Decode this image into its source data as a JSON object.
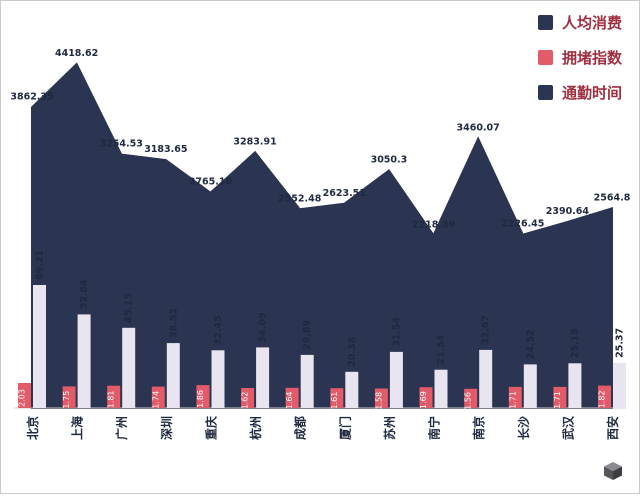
{
  "legend": {
    "text_color": "#a02f3f",
    "items": [
      {
        "label": "人均消费",
        "marker_color": "#2b3450"
      },
      {
        "label": "拥堵指数",
        "marker_color": "#e15b68"
      },
      {
        "label": "通勤时间",
        "marker_color": "#2b3450"
      }
    ]
  },
  "chart_data": {
    "type": "bar",
    "title": "",
    "xlabel": "",
    "ylabel": "",
    "grid": false,
    "legend_position": "right-top",
    "categories": [
      "北京",
      "上海",
      "广州",
      "深圳",
      "重庆",
      "杭州",
      "成都",
      "厦门",
      "苏州",
      "南宁",
      "南京",
      "长沙",
      "武汉",
      "西安"
    ],
    "series": [
      {
        "name": "人均消费",
        "type": "area",
        "color": "#2b3450",
        "label_color": "#1f2940",
        "values": [
          3862.35,
          4418.62,
          3254.53,
          3183.65,
          2765.16,
          3283.91,
          2552.48,
          2623.51,
          3050.3,
          2218.89,
          3460.07,
          2226.45,
          2390.64,
          2564.8
        ]
      },
      {
        "name": "拥堵指数",
        "type": "bar",
        "color": "#e15b68",
        "label_color": "#ffffff",
        "values": [
          2.03,
          1.75,
          1.81,
          1.74,
          1.86,
          1.62,
          1.64,
          1.61,
          1.58,
          1.69,
          1.56,
          1.71,
          1.71,
          1.82
        ]
      },
      {
        "name": "通勤时间",
        "type": "bar",
        "color": "#e9e5f0",
        "label_color": "#1f2940",
        "values": [
          69.21,
          52.64,
          45.15,
          36.52,
          32.45,
          34.09,
          29.89,
          20.38,
          31.54,
          21.54,
          32.67,
          24.52,
          25.15,
          25.37
        ]
      }
    ],
    "axis_line_color": "#cccccc",
    "x_label_color": "#1f2940"
  },
  "watermark": {
    "name": "cube-logo"
  }
}
